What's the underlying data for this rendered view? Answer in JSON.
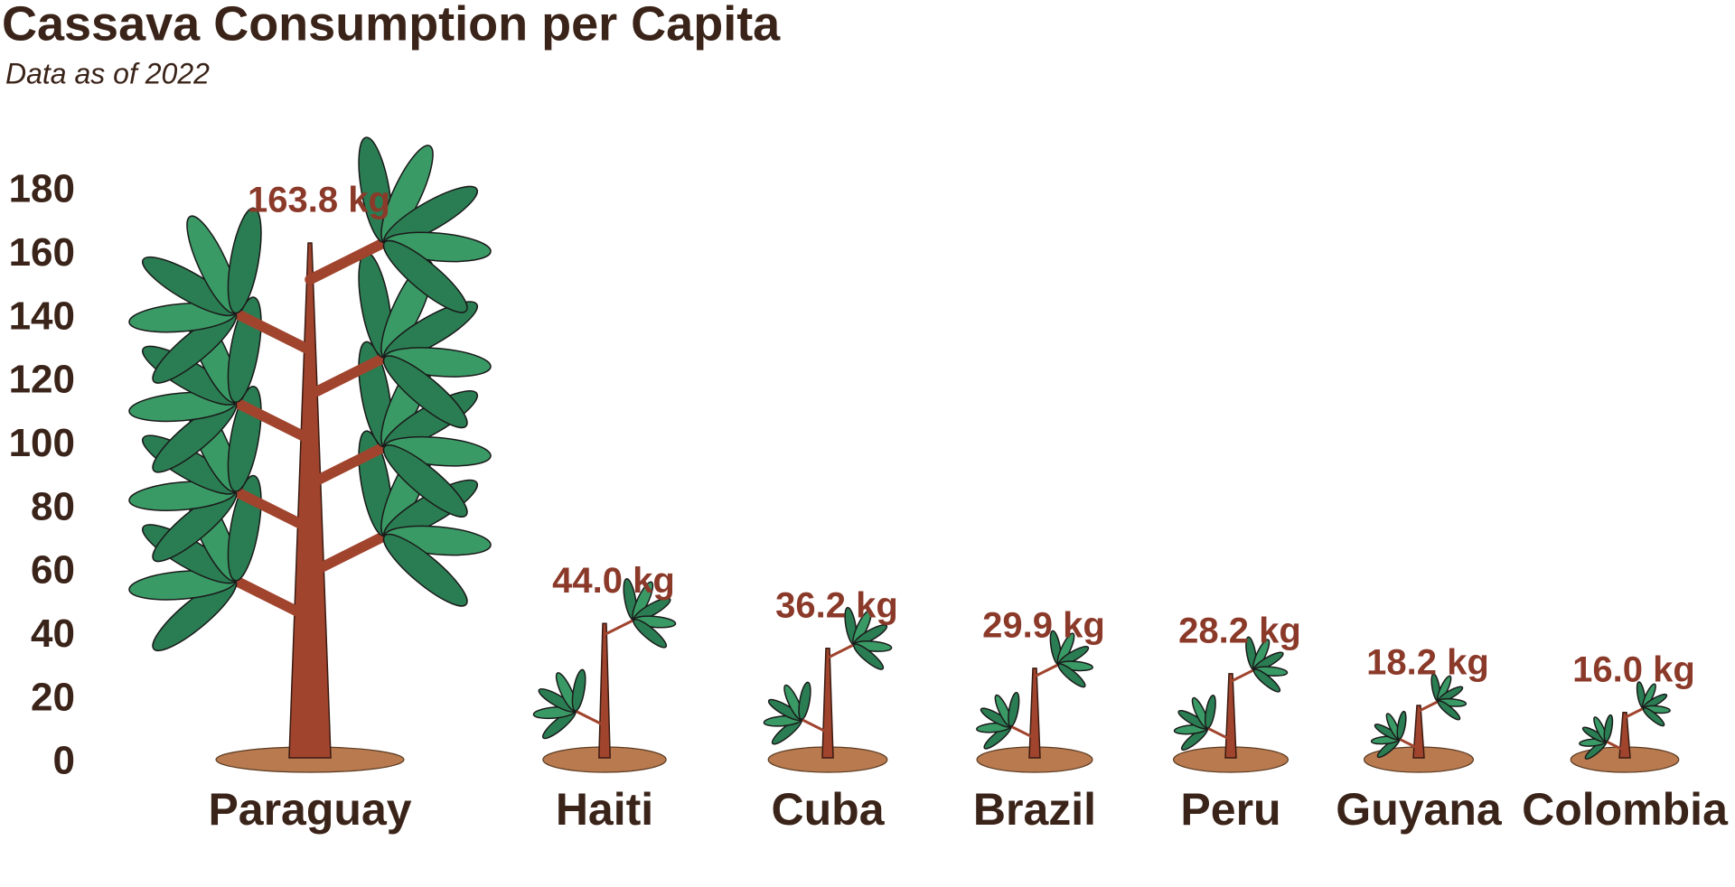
{
  "chart_data": {
    "type": "pictogram",
    "title": "Cassava Consumption per Capita",
    "subtitle": "Data as of 2022",
    "categories": [
      "Paraguay",
      "Haiti",
      "Cuba",
      "Brazil",
      "Peru",
      "Guyana",
      "Colombia"
    ],
    "values": [
      163.8,
      44.0,
      36.2,
      29.9,
      28.2,
      18.2,
      16.0
    ],
    "value_labels": [
      "163.8 kg",
      "44.0 kg",
      "36.2 kg",
      "29.9 kg",
      "28.2 kg",
      "18.2 kg",
      "16.0 kg"
    ],
    "color": "#3a9a66",
    "ylim": [
      0,
      180
    ],
    "yticks": [
      0,
      20,
      40,
      60,
      80,
      100,
      120,
      140,
      160,
      180
    ],
    "grid": false
  }
}
